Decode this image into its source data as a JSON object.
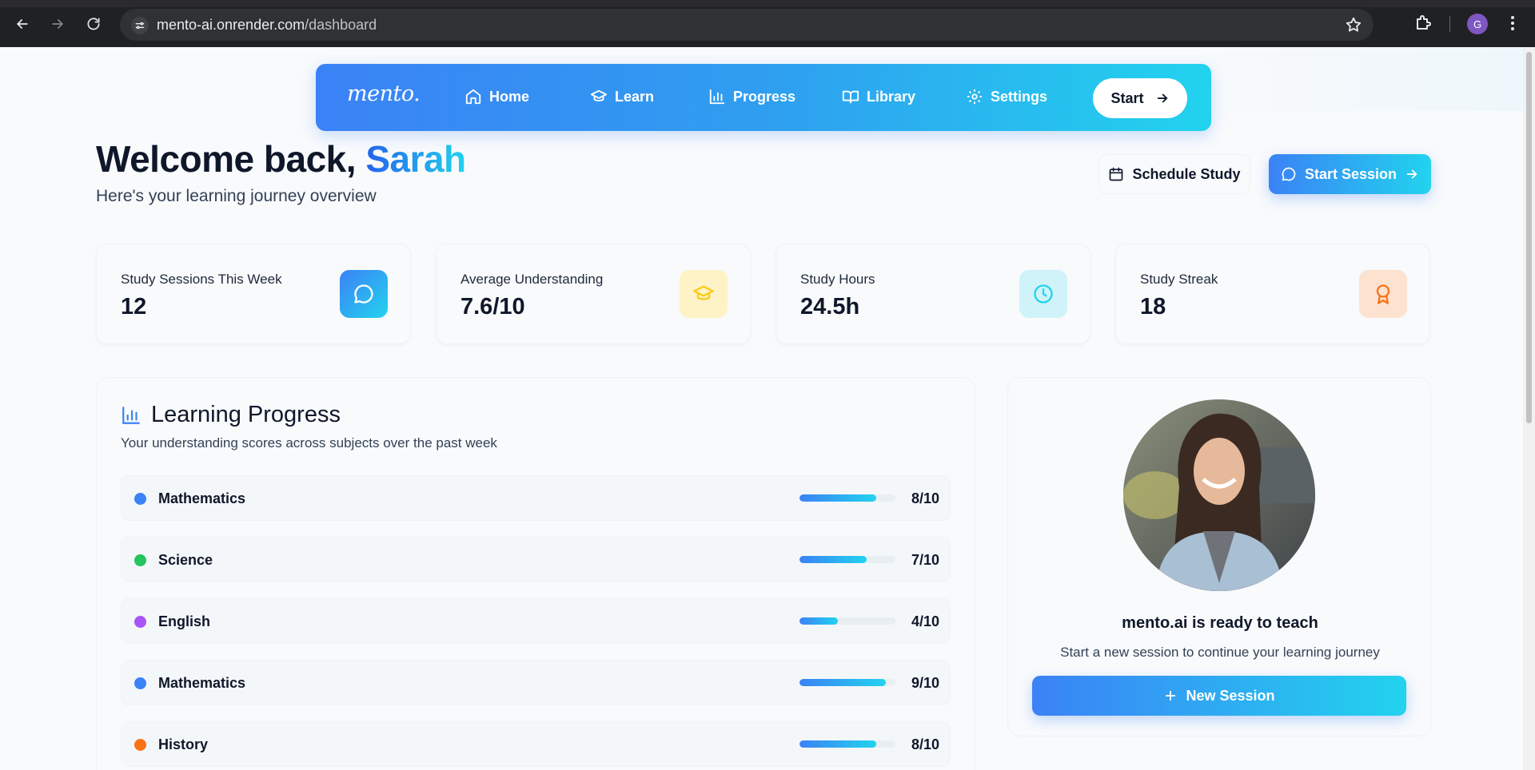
{
  "browser": {
    "url_host": "mento-ai.onrender.com",
    "url_path": "/dashboard",
    "profile_initial": "G"
  },
  "nav": {
    "logo": "mento.",
    "items": [
      {
        "label": "Home",
        "icon": "home-icon"
      },
      {
        "label": "Learn",
        "icon": "graduation-cap-icon"
      },
      {
        "label": "Progress",
        "icon": "bar-chart-icon"
      },
      {
        "label": "Library",
        "icon": "book-open-icon"
      },
      {
        "label": "Settings",
        "icon": "gear-icon"
      }
    ],
    "start_label": "Start"
  },
  "header": {
    "welcome_prefix": "Welcome back,",
    "user_name": "Sarah",
    "subtitle": "Here's your learning journey overview",
    "schedule_label": "Schedule Study",
    "start_session_label": "Start Session"
  },
  "stats": [
    {
      "label": "Study Sessions This Week",
      "value": "12",
      "icon": "chat-bubble-icon",
      "color": "#3b82f6"
    },
    {
      "label": "Average Understanding",
      "value": "7.6/10",
      "icon": "graduation-cap-icon",
      "color": "#facc15"
    },
    {
      "label": "Study Hours",
      "value": "24.5h",
      "icon": "clock-icon",
      "color": "#22d3ee"
    },
    {
      "label": "Study Streak",
      "value": "18",
      "icon": "award-icon",
      "color": "#f97316"
    }
  ],
  "progress": {
    "title": "Learning Progress",
    "subtitle": "Your understanding scores across subjects over the past week",
    "rows": [
      {
        "subject": "Mathematics",
        "score": "8/10",
        "fraction": 0.8,
        "color": "#3b82f6"
      },
      {
        "subject": "Science",
        "score": "7/10",
        "fraction": 0.7,
        "color": "#22c55e"
      },
      {
        "subject": "English",
        "score": "4/10",
        "fraction": 0.4,
        "color": "#a855f7"
      },
      {
        "subject": "Mathematics",
        "score": "9/10",
        "fraction": 0.9,
        "color": "#3b82f6"
      },
      {
        "subject": "History",
        "score": "8/10",
        "fraction": 0.8,
        "color": "#f97316"
      }
    ]
  },
  "tutor": {
    "title": "mento.ai is ready to teach",
    "subtitle": "Start a new session to continue your learning journey",
    "button_label": "New Session"
  }
}
